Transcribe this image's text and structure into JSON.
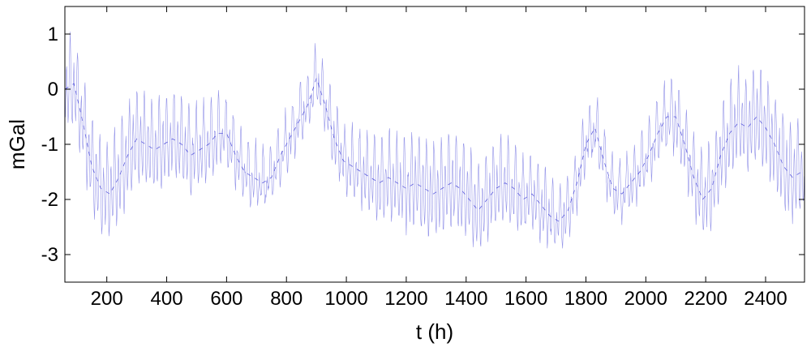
{
  "chart_data": {
    "type": "line",
    "title": "",
    "xlabel": "t (h)",
    "ylabel": "mGal",
    "xlim": [
      60,
      2530
    ],
    "ylim": [
      -3.5,
      1.5
    ],
    "x_ticks": [
      200,
      400,
      600,
      800,
      1000,
      1200,
      1400,
      1600,
      1800,
      2000,
      2200,
      2400
    ],
    "y_ticks": [
      1,
      0,
      -1,
      -2,
      -3
    ],
    "x_tick_labels": [
      "200",
      "400",
      "600",
      "800",
      "1000",
      "1200",
      "1400",
      "1600",
      "1800",
      "2000",
      "2200",
      "2400"
    ],
    "y_tick_labels": [
      "1",
      "0",
      "-1",
      "-2",
      "-3"
    ],
    "grid": false,
    "line_color": "#3b3bd6",
    "series": [
      {
        "x": [
          60,
          90,
          120,
          150,
          180,
          210,
          240,
          270,
          300,
          330,
          360,
          390,
          420,
          450,
          480,
          510,
          540,
          570,
          600,
          630,
          660,
          690,
          720,
          750,
          780,
          810,
          840,
          870,
          900,
          930,
          960,
          990,
          1020,
          1050,
          1080,
          1110,
          1140,
          1170,
          1200,
          1230,
          1260,
          1290,
          1320,
          1350,
          1380,
          1410,
          1440,
          1470,
          1500,
          1530,
          1560,
          1590,
          1620,
          1650,
          1680,
          1710,
          1740,
          1770,
          1800,
          1830,
          1860,
          1890,
          1920,
          1950,
          1980,
          2010,
          2040,
          2070,
          2100,
          2130,
          2160,
          2190,
          2220,
          2250,
          2280,
          2310,
          2340,
          2370,
          2400,
          2430,
          2460,
          2490,
          2520
        ],
        "y": [
          0.0,
          0.1,
          -0.6,
          -1.4,
          -1.8,
          -1.9,
          -1.6,
          -1.2,
          -0.9,
          -1.0,
          -1.1,
          -1.0,
          -0.9,
          -1.0,
          -1.2,
          -1.1,
          -1.0,
          -0.8,
          -0.8,
          -1.2,
          -1.5,
          -1.6,
          -1.7,
          -1.6,
          -1.2,
          -0.9,
          -0.6,
          -0.3,
          0.2,
          -0.3,
          -0.9,
          -1.3,
          -1.4,
          -1.5,
          -1.6,
          -1.7,
          -1.6,
          -1.7,
          -1.8,
          -1.7,
          -1.8,
          -1.9,
          -1.8,
          -1.7,
          -1.8,
          -2.0,
          -2.2,
          -2.0,
          -1.8,
          -1.7,
          -1.8,
          -2.0,
          -1.9,
          -2.1,
          -2.3,
          -2.4,
          -2.2,
          -1.7,
          -1.0,
          -0.7,
          -1.3,
          -1.8,
          -1.9,
          -1.7,
          -1.5,
          -1.2,
          -0.8,
          -0.5,
          -0.5,
          -1.0,
          -1.6,
          -2.0,
          -1.8,
          -1.2,
          -0.8,
          -0.6,
          -0.7,
          -0.5,
          -0.7,
          -1.0,
          -1.4,
          -1.6,
          -1.5
        ]
      }
    ]
  }
}
